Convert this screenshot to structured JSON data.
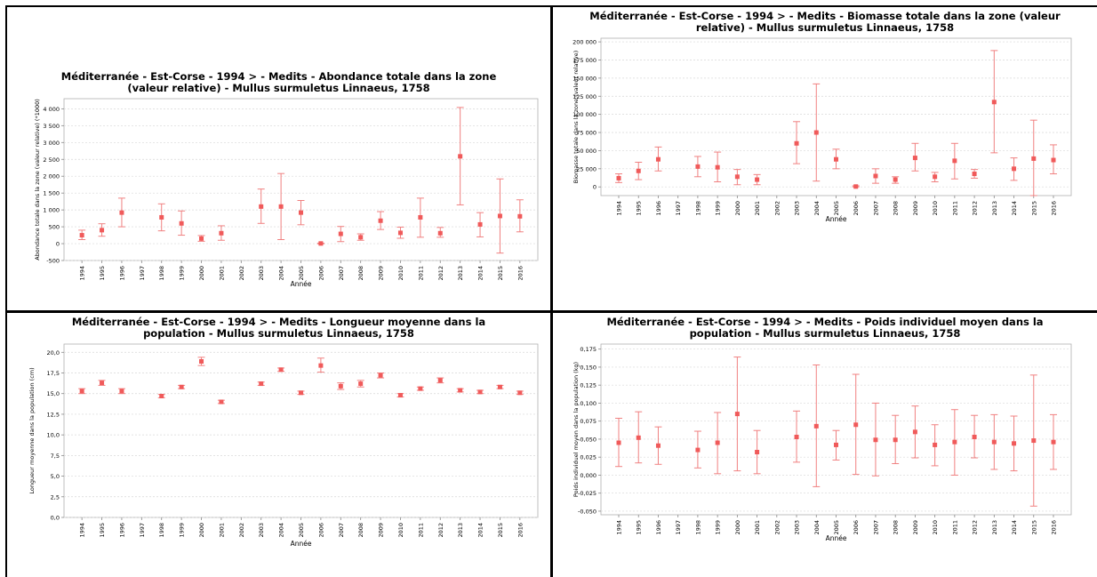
{
  "colors": {
    "marker": "#f05a5a",
    "errorbar": "#f08080",
    "gridline": "#d8d8d8",
    "axis": "#888888",
    "text": "#000000"
  },
  "chart_data": [
    {
      "id": "abondance",
      "type": "scatter",
      "title_line1": "Méditerranée - Est-Corse - 1994 > - Medits - Abondance totale dans la zone",
      "title_line2": "(valeur relative) - Mullus surmuletus Linnaeus, 1758",
      "xlabel": "Année",
      "ylabel": "Abondance totale dans la zone (valeur relative) (*1000)",
      "categories": [
        "1994",
        "1995",
        "1996",
        "1997",
        "1998",
        "1999",
        "2000",
        "2001",
        "2002",
        "2003",
        "2004",
        "2005",
        "2006",
        "2007",
        "2008",
        "2009",
        "2010",
        "2011",
        "2012",
        "2013",
        "2014",
        "2015",
        "2016"
      ],
      "yticks": [
        "-500",
        "0",
        "500",
        "1 000",
        "1 500",
        "2 000",
        "2 500",
        "3 000",
        "3 500",
        "4 000"
      ],
      "ytick_values": [
        -500,
        0,
        500,
        1000,
        1500,
        2000,
        2500,
        3000,
        3500,
        4000
      ],
      "ylim": [
        -500,
        4300
      ],
      "grid": true,
      "series": [
        {
          "values": [
            250,
            400,
            920,
            null,
            780,
            600,
            150,
            310,
            null,
            1100,
            1100,
            920,
            5,
            290,
            190,
            680,
            320,
            780,
            310,
            2590,
            570,
            820,
            810
          ],
          "lower": [
            120,
            220,
            500,
            null,
            380,
            250,
            70,
            100,
            null,
            600,
            120,
            560,
            -5,
            60,
            100,
            420,
            160,
            190,
            190,
            1150,
            200,
            -280,
            350
          ],
          "upper": [
            400,
            590,
            1350,
            null,
            1180,
            970,
            240,
            530,
            null,
            1620,
            2080,
            1280,
            15,
            510,
            290,
            950,
            490,
            1350,
            480,
            4040,
            920,
            1920,
            1300
          ]
        }
      ]
    },
    {
      "id": "biomasse",
      "type": "scatter",
      "title_line1": "Méditerranée - Est-Corse - 1994 > - Medits - Biomasse totale dans la zone (valeur",
      "title_line2": "relative) - Mullus surmuletus Linnaeus, 1758",
      "xlabel": "Année",
      "ylabel": "Biomasse totale dans la zone (valeur relative)",
      "categories": [
        "1994",
        "1995",
        "1996",
        "1997",
        "1998",
        "1999",
        "2000",
        "2001",
        "2002",
        "2003",
        "2004",
        "2005",
        "2006",
        "2007",
        "2008",
        "2009",
        "2010",
        "2011",
        "2012",
        "2013",
        "2014",
        "2015",
        "2016"
      ],
      "yticks": [
        "0",
        "25 000",
        "50 000",
        "75 000",
        "100 000",
        "125 000",
        "150 000",
        "175 000",
        "200 000"
      ],
      "ytick_values": [
        0,
        25000,
        50000,
        75000,
        100000,
        125000,
        150000,
        175000,
        200000
      ],
      "ylim": [
        -12000,
        205000
      ],
      "grid": true,
      "series": [
        {
          "values": [
            12000,
            22000,
            38000,
            null,
            28000,
            27000,
            14000,
            10000,
            null,
            60000,
            75000,
            38000,
            500,
            15000,
            10000,
            40000,
            14000,
            36000,
            18000,
            117000,
            25000,
            39000,
            37000
          ],
          "lower": [
            6000,
            10000,
            22000,
            null,
            14000,
            7000,
            3000,
            3000,
            null,
            32000,
            8000,
            25000,
            0,
            5000,
            5000,
            22000,
            7000,
            11000,
            12000,
            47000,
            9000,
            -12000,
            18000
          ],
          "upper": [
            18000,
            34000,
            55000,
            null,
            42000,
            48000,
            24000,
            17000,
            null,
            90000,
            142000,
            52000,
            1500,
            25000,
            14000,
            60000,
            20000,
            60000,
            24000,
            188000,
            40000,
            92000,
            58000
          ]
        }
      ]
    },
    {
      "id": "longueur",
      "type": "scatter",
      "title_line1": "Méditerranée - Est-Corse - 1994 > - Medits - Longueur moyenne dans la",
      "title_line2": "population - Mullus surmuletus Linnaeus, 1758",
      "xlabel": "Année",
      "ylabel": "Longueur moyenne dans la population (cm)",
      "categories": [
        "1994",
        "1995",
        "1996",
        "1997",
        "1998",
        "1999",
        "2000",
        "2001",
        "2002",
        "2003",
        "2004",
        "2005",
        "2006",
        "2007",
        "2008",
        "2009",
        "2010",
        "2011",
        "2012",
        "2013",
        "2014",
        "2015",
        "2016"
      ],
      "yticks": [
        "0,0",
        "2,5",
        "5,0",
        "7,5",
        "10,0",
        "12,5",
        "15,0",
        "17,5",
        "20,0"
      ],
      "ytick_values": [
        0,
        2.5,
        5,
        7.5,
        10,
        12.5,
        15,
        17.5,
        20
      ],
      "ylim": [
        0,
        21
      ],
      "grid": true,
      "series": [
        {
          "values": [
            15.3,
            16.3,
            15.3,
            null,
            14.7,
            15.8,
            18.9,
            14.0,
            null,
            16.2,
            17.9,
            15.1,
            18.4,
            15.9,
            16.2,
            17.2,
            14.8,
            15.6,
            16.6,
            15.4,
            15.2,
            15.8,
            15.1
          ],
          "lower": [
            15.0,
            16.0,
            15.0,
            null,
            14.5,
            15.6,
            18.4,
            13.8,
            null,
            16.0,
            17.7,
            14.9,
            17.6,
            15.5,
            15.8,
            16.9,
            14.6,
            15.4,
            16.3,
            15.2,
            15.0,
            15.6,
            14.9
          ],
          "upper": [
            15.6,
            16.6,
            15.6,
            null,
            14.9,
            16.0,
            19.4,
            14.2,
            null,
            16.4,
            18.1,
            15.3,
            19.3,
            16.3,
            16.6,
            17.5,
            15.0,
            15.8,
            16.9,
            15.6,
            15.4,
            16.0,
            15.3
          ]
        }
      ]
    },
    {
      "id": "poids",
      "type": "scatter",
      "title_line1": "Méditerranée - Est-Corse - 1994 > - Medits - Poids individuel moyen dans la",
      "title_line2": "population - Mullus surmuletus Linnaeus, 1758",
      "xlabel": "Année",
      "ylabel": "Poids individuel moyen dans la population (kg)",
      "categories": [
        "1994",
        "1995",
        "1996",
        "1997",
        "1998",
        "1999",
        "2000",
        "2001",
        "2002",
        "2003",
        "2004",
        "2005",
        "2006",
        "2007",
        "2008",
        "2009",
        "2010",
        "2011",
        "2012",
        "2013",
        "2014",
        "2015",
        "2016"
      ],
      "yticks": [
        "-0,050",
        "-0,025",
        "0,000",
        "0,025",
        "0,050",
        "0,075",
        "0,100",
        "0,125",
        "0,150",
        "0,175"
      ],
      "ytick_values": [
        -0.05,
        -0.025,
        0,
        0.025,
        0.05,
        0.075,
        0.1,
        0.125,
        0.15,
        0.175
      ],
      "ylim": [
        -0.055,
        0.182
      ],
      "grid": true,
      "series": [
        {
          "values": [
            0.045,
            0.052,
            0.041,
            null,
            0.035,
            0.045,
            0.085,
            0.032,
            null,
            0.053,
            0.068,
            0.042,
            0.07,
            0.049,
            0.049,
            0.06,
            0.042,
            0.046,
            0.053,
            0.046,
            0.044,
            0.048,
            0.046
          ],
          "lower": [
            0.012,
            0.017,
            0.015,
            null,
            0.01,
            0.002,
            0.006,
            0.002,
            null,
            0.018,
            -0.016,
            0.021,
            0.001,
            -0.001,
            0.016,
            0.024,
            0.013,
            0.0,
            0.024,
            0.008,
            0.006,
            -0.043,
            0.008
          ],
          "upper": [
            0.079,
            0.088,
            0.067,
            null,
            0.061,
            0.087,
            0.164,
            0.062,
            null,
            0.089,
            0.153,
            0.062,
            0.14,
            0.1,
            0.083,
            0.096,
            0.07,
            0.091,
            0.083,
            0.084,
            0.082,
            0.139,
            0.084
          ]
        }
      ]
    }
  ]
}
